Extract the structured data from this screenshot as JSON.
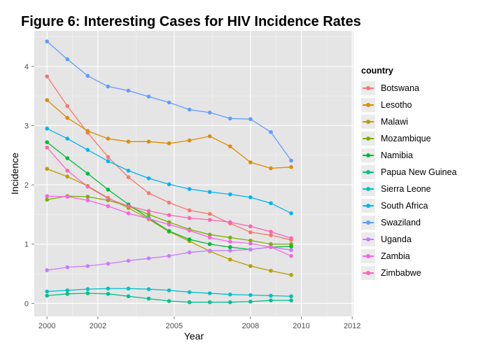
{
  "chart_data": {
    "type": "line",
    "title": "Figure 6: Interesting Cases for HIV Incidence Rates",
    "xlabel": "Year",
    "ylabel": "Incidence",
    "xlim": [
      1999.5,
      2012.05
    ],
    "ylim": [
      -0.22,
      4.6
    ],
    "x_ticks": [
      2000,
      2002,
      2005,
      2008,
      2010,
      2012
    ],
    "x_tick_labels": [
      "2000",
      "2002",
      "2005",
      "2008",
      "2010",
      "2012"
    ],
    "y_ticks": [
      0,
      1,
      2,
      3,
      4
    ],
    "y_tick_labels": [
      "0",
      "1",
      "2",
      "3",
      "4"
    ],
    "grid": true,
    "legend_title": "country",
    "legend_position": "right",
    "x": [
      2000,
      2000.8,
      2001.6,
      2002.4,
      2003.2,
      2004.0,
      2004.8,
      2005.6,
      2006.4,
      2007.2,
      2008.0,
      2008.8,
      2009.6
    ],
    "series": [
      {
        "name": "Botswana",
        "color": "#F8766D",
        "values": [
          3.83,
          3.33,
          2.88,
          2.47,
          2.13,
          1.86,
          1.7,
          1.57,
          1.51,
          1.35,
          1.2,
          1.15,
          1.07
        ]
      },
      {
        "name": "Lesotho",
        "color": "#DE8C00",
        "values": [
          3.43,
          3.13,
          2.91,
          2.78,
          2.73,
          2.73,
          2.7,
          2.75,
          2.82,
          2.65,
          2.38,
          2.28,
          2.3
        ]
      },
      {
        "name": "Malawi",
        "color": "#B79F00",
        "values": [
          2.27,
          2.14,
          1.98,
          1.78,
          1.61,
          1.42,
          1.21,
          1.05,
          0.88,
          0.74,
          0.63,
          0.55,
          0.48
        ]
      },
      {
        "name": "Mozambique",
        "color": "#7CAE00",
        "values": [
          1.75,
          1.81,
          1.8,
          1.74,
          1.64,
          1.5,
          1.37,
          1.25,
          1.16,
          1.11,
          1.06,
          1.0,
          1.0
        ]
      },
      {
        "name": "Namibia",
        "color": "#00BA38",
        "values": [
          2.72,
          2.45,
          2.19,
          1.92,
          1.67,
          1.44,
          1.22,
          1.08,
          1.0,
          0.95,
          0.91,
          0.95,
          0.96
        ]
      },
      {
        "name": "Papua New Guinea",
        "color": "#00C08B",
        "values": [
          0.13,
          0.16,
          0.17,
          0.16,
          0.12,
          0.08,
          0.04,
          0.02,
          0.02,
          0.02,
          0.03,
          0.05,
          0.05
        ]
      },
      {
        "name": "Sierra Leone",
        "color": "#00BFC4",
        "values": [
          0.2,
          0.22,
          0.24,
          0.25,
          0.25,
          0.24,
          0.22,
          0.19,
          0.17,
          0.15,
          0.14,
          0.13,
          0.12
        ]
      },
      {
        "name": "South Africa",
        "color": "#00B4F0",
        "values": [
          2.95,
          2.78,
          2.59,
          2.4,
          2.24,
          2.11,
          2.01,
          1.93,
          1.88,
          1.84,
          1.79,
          1.69,
          1.52
        ]
      },
      {
        "name": "Swaziland",
        "color": "#619CFF",
        "values": [
          4.42,
          4.12,
          3.84,
          3.66,
          3.59,
          3.49,
          3.39,
          3.27,
          3.22,
          3.12,
          3.11,
          2.89,
          2.41
        ]
      },
      {
        "name": "Uganda",
        "color": "#C77CFF",
        "values": [
          0.56,
          0.61,
          0.63,
          0.67,
          0.72,
          0.76,
          0.8,
          0.86,
          0.89,
          0.89,
          0.91,
          0.95,
          0.9
        ]
      },
      {
        "name": "Zambia",
        "color": "#F564E3",
        "values": [
          1.81,
          1.8,
          1.74,
          1.64,
          1.52,
          1.43,
          1.33,
          1.23,
          1.11,
          1.04,
          1.01,
          0.95,
          0.8
        ]
      },
      {
        "name": "Zimbabwe",
        "color": "#FF64B0",
        "values": [
          2.63,
          2.24,
          1.97,
          1.77,
          1.64,
          1.56,
          1.49,
          1.44,
          1.41,
          1.37,
          1.3,
          1.21,
          1.1
        ]
      }
    ]
  }
}
